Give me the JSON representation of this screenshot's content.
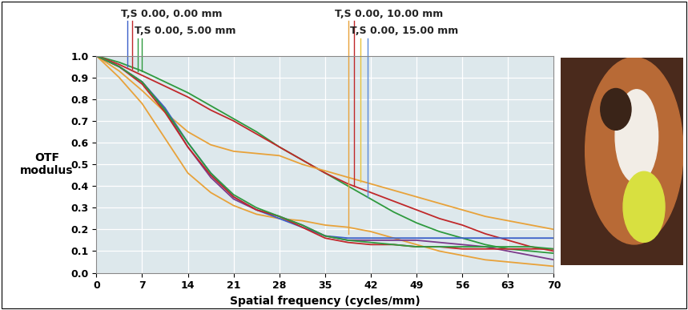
{
  "chart_data": {
    "type": "line",
    "x_label": "Spatial frequency (cycles/mm)",
    "y_label": "OTF\nmodulus",
    "xlim": [
      0,
      70
    ],
    "xticks": [
      0,
      7,
      14,
      21,
      28,
      35,
      42,
      49,
      56,
      63,
      70
    ],
    "ylim": [
      0,
      1.0
    ],
    "yticks": [
      {
        "value": 0,
        "label": "0.0"
      },
      0.1,
      0.2,
      0.3,
      0.4,
      0.5,
      0.6,
      0.7,
      0.8,
      0.9,
      {
        "value": 1.0,
        "label": "1.0"
      }
    ],
    "grid": true,
    "x": [
      0,
      3.5,
      7,
      10.5,
      14,
      17.5,
      21,
      24.5,
      28,
      31.5,
      35,
      38.5,
      42,
      45.5,
      49,
      52.5,
      56,
      59.5,
      63,
      66.5,
      70
    ],
    "series": [
      {
        "color": "#2e9a3e",
        "values": [
          1.0,
          0.97,
          0.93,
          0.88,
          0.83,
          0.77,
          0.71,
          0.65,
          0.58,
          0.52,
          0.46,
          0.4,
          0.34,
          0.28,
          0.23,
          0.19,
          0.16,
          0.13,
          0.11,
          0.1,
          0.09
        ]
      },
      {
        "color": "#c0282a",
        "values": [
          1.0,
          0.96,
          0.91,
          0.86,
          0.81,
          0.75,
          0.7,
          0.64,
          0.58,
          0.52,
          0.46,
          0.41,
          0.37,
          0.33,
          0.29,
          0.25,
          0.22,
          0.18,
          0.15,
          0.12,
          0.1
        ]
      },
      {
        "color": "#e8a23a",
        "values": [
          1.0,
          0.93,
          0.84,
          0.74,
          0.65,
          0.59,
          0.56,
          0.55,
          0.54,
          0.5,
          0.47,
          0.44,
          0.41,
          0.38,
          0.35,
          0.32,
          0.29,
          0.26,
          0.24,
          0.22,
          0.2
        ]
      },
      {
        "color": "#e8a23a",
        "values": [
          1.0,
          0.9,
          0.78,
          0.62,
          0.46,
          0.37,
          0.31,
          0.27,
          0.25,
          0.24,
          0.22,
          0.21,
          0.19,
          0.16,
          0.13,
          0.1,
          0.08,
          0.06,
          0.05,
          0.04,
          0.03
        ]
      },
      {
        "color": "#3a5fc8",
        "values": [
          1.0,
          0.95,
          0.88,
          0.76,
          0.6,
          0.46,
          0.35,
          0.29,
          0.25,
          0.21,
          0.17,
          0.16,
          0.16,
          0.16,
          0.16,
          0.16,
          0.16,
          0.16,
          0.16,
          0.16,
          0.16
        ]
      },
      {
        "color": "#7a3a8a",
        "values": [
          1.0,
          0.95,
          0.88,
          0.75,
          0.58,
          0.44,
          0.34,
          0.29,
          0.26,
          0.22,
          0.17,
          0.15,
          0.15,
          0.15,
          0.15,
          0.14,
          0.13,
          0.12,
          0.1,
          0.08,
          0.06
        ]
      },
      {
        "color": "#c0282a",
        "values": [
          1.0,
          0.95,
          0.87,
          0.74,
          0.58,
          0.45,
          0.35,
          0.29,
          0.26,
          0.21,
          0.16,
          0.14,
          0.13,
          0.13,
          0.12,
          0.12,
          0.11,
          0.11,
          0.11,
          0.11,
          0.11
        ]
      },
      {
        "color": "#2e9a3e",
        "values": [
          1.0,
          0.95,
          0.88,
          0.75,
          0.6,
          0.46,
          0.36,
          0.3,
          0.26,
          0.22,
          0.17,
          0.15,
          0.14,
          0.13,
          0.12,
          0.12,
          0.12,
          0.12,
          0.12,
          0.12,
          0.11
        ]
      }
    ],
    "annotations": [
      {
        "text": "T,S 0.00, 0.00 mm",
        "x": 3.8,
        "lines": [
          {
            "x": 4.8,
            "y": 0.95,
            "color": "#3a5fc8"
          },
          {
            "x": 5.5,
            "y": 0.94,
            "color": "#c0282a"
          }
        ]
      },
      {
        "text": "T,S 0.00, 5.00 mm",
        "x": 5.9,
        "lines": [
          {
            "x": 6.3,
            "y": 0.93,
            "color": "#2e9a3e"
          },
          {
            "x": 7.0,
            "y": 0.93,
            "color": "#2e9a3e"
          }
        ]
      },
      {
        "text": "T,S 0.00, 10.00 mm",
        "x": 36.5,
        "lines": [
          {
            "x": 38.6,
            "y": 0.18,
            "color": "#e8a23a"
          },
          {
            "x": 39.4,
            "y": 0.4,
            "color": "#c0282a"
          }
        ]
      },
      {
        "text": "T,S 0.00, 15.00 mm",
        "x": 38.8,
        "lines": [
          {
            "x": 40.4,
            "y": 0.42,
            "color": "#e8c23a"
          },
          {
            "x": 41.5,
            "y": 0.35,
            "color": "#5a8ad8"
          }
        ]
      }
    ]
  }
}
